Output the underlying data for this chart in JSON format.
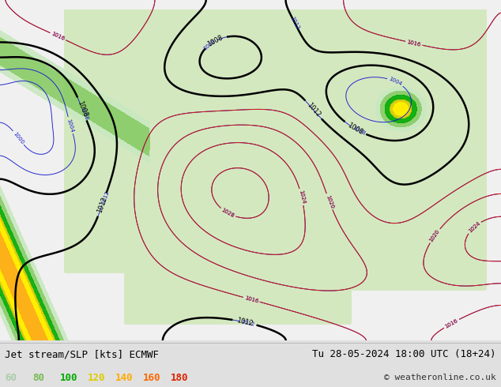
{
  "title_left": "Jet stream/SLP [kts] ECMWF",
  "title_right": "Tu 28-05-2024 18:00 UTC (18+24)",
  "copyright": "© weatheronline.co.uk",
  "legend_values": [
    60,
    80,
    100,
    120,
    140,
    160,
    180
  ],
  "legend_colors": [
    "#aaccaa",
    "#77bb55",
    "#00aa00",
    "#ddcc00",
    "#ffaa00",
    "#ff6600",
    "#dd2200"
  ],
  "bg_color": "#e0e0e0",
  "ocean_color": "#f0f0f0",
  "land_color": "#d4e8c0",
  "gray_land": "#c0c0b8",
  "contour_blue": "#1a1acc",
  "contour_red": "#cc1a1a",
  "contour_black": "#000000",
  "bottom_bar_color": "#d8d8d8",
  "title_fontsize": 9,
  "legend_fontsize": 9,
  "copyright_fontsize": 8,
  "fig_width": 6.34,
  "fig_height": 4.9,
  "dpi": 100
}
